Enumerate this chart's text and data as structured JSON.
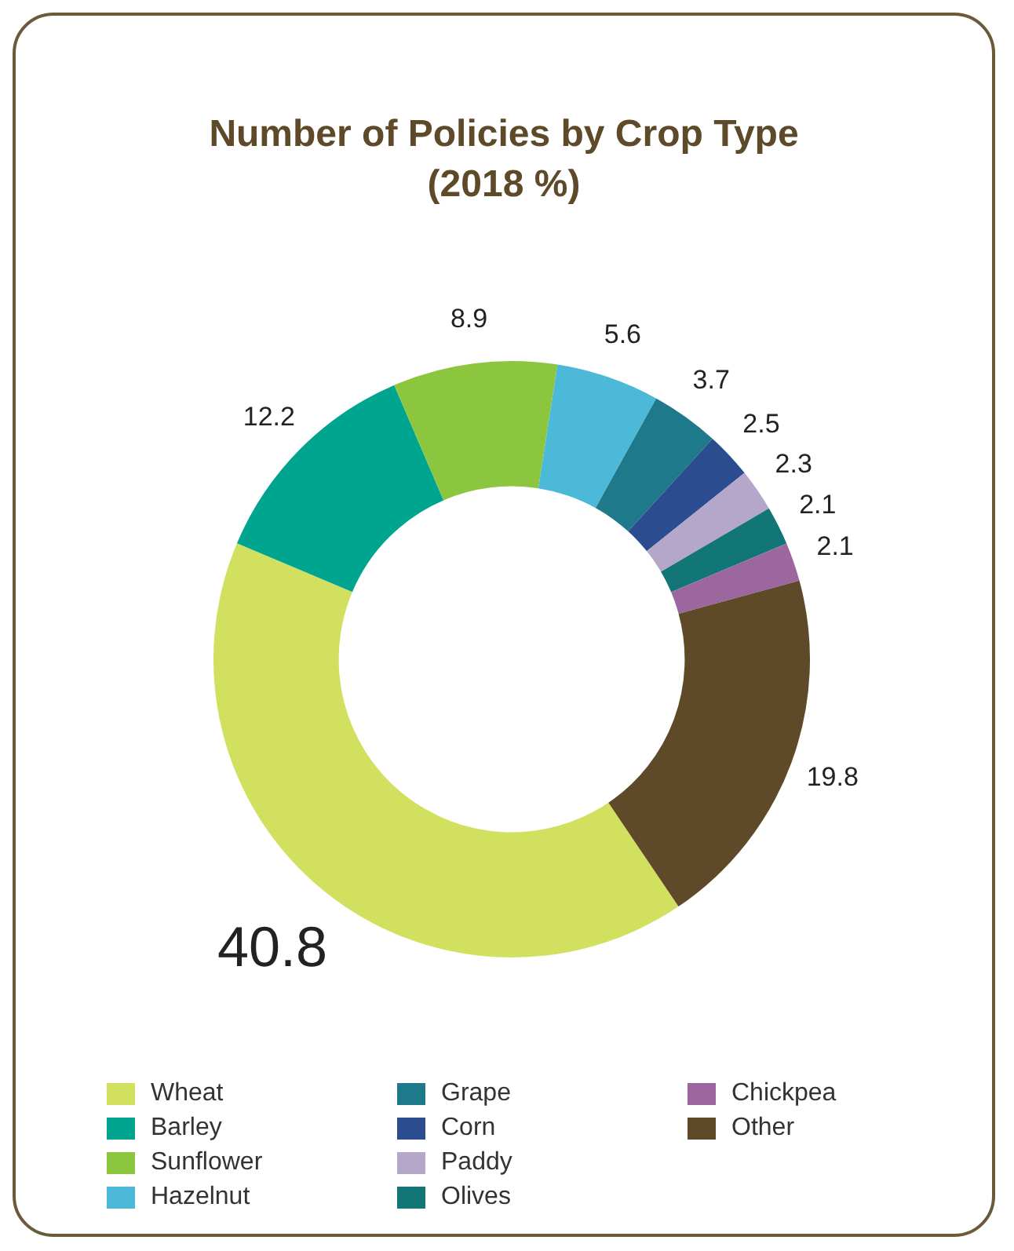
{
  "chart_data": {
    "type": "donut",
    "title": "Number of Policies by Crop Type\n(2018 %)",
    "categories": [
      "Wheat",
      "Barley",
      "Sunflower",
      "Hazelnut",
      "Grape",
      "Corn",
      "Paddy",
      "Olives",
      "Chickpea",
      "Other"
    ],
    "values": [
      40.8,
      12.2,
      8.9,
      5.6,
      3.7,
      2.5,
      2.3,
      2.1,
      2.1,
      19.8
    ],
    "colors": [
      "#d2e060",
      "#00a58f",
      "#8cc63f",
      "#4bb9d7",
      "#1e7a8a",
      "#2b4d90",
      "#b4a7c9",
      "#137676",
      "#9c679f",
      "#5e4a29"
    ],
    "data_labels": true,
    "legend": "bottom"
  }
}
